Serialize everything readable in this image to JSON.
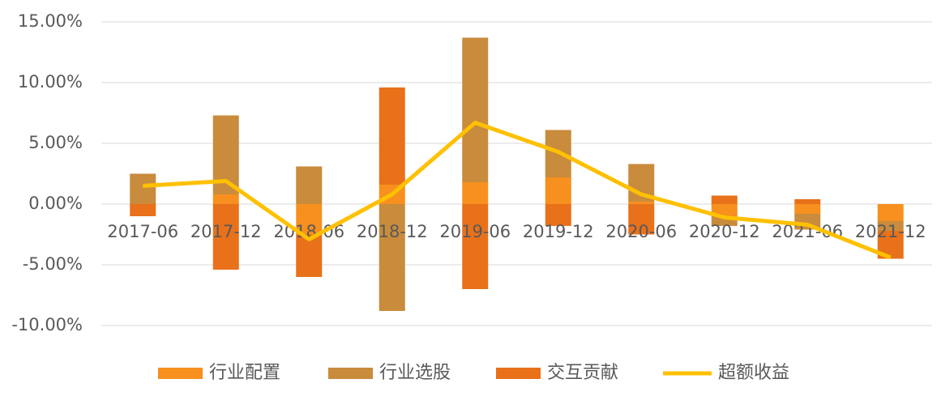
{
  "chart_data": {
    "type": "bar-line",
    "categories": [
      "2017-06",
      "2017-12",
      "2018-06",
      "2018-12",
      "2019-06",
      "2019-12",
      "2020-06",
      "2020-12",
      "2021-06",
      "2021-12"
    ],
    "series": [
      {
        "name": "行业配置",
        "color": "#f7901e",
        "values": [
          0,
          0.8,
          -2.5,
          1.6,
          1.8,
          2.2,
          0.2,
          -1.0,
          -0.8,
          -1.4
        ]
      },
      {
        "name": "行业选股",
        "color": "#c98b3c",
        "values": [
          2.5,
          6.5,
          3.1,
          -8.8,
          11.9,
          3.9,
          3.1,
          -0.8,
          -1.3,
          -0.8
        ]
      },
      {
        "name": "交互贡献",
        "color": "#e8711a",
        "values": [
          -1.0,
          -5.4,
          -3.5,
          8.0,
          -7.0,
          -1.8,
          -2.5,
          0.7,
          0.4,
          -2.3
        ]
      },
      {
        "name": "超额收益",
        "color": "#ffc000",
        "type": "line",
        "values": [
          1.5,
          1.9,
          -2.9,
          0.8,
          6.7,
          4.3,
          0.8,
          -1.1,
          -1.7,
          -4.4
        ]
      }
    ],
    "ylim": [
      -12,
      16
    ],
    "yticks": [
      {
        "value": -10,
        "label": "-10.00%"
      },
      {
        "value": -5,
        "label": "-5.00%"
      },
      {
        "value": 0,
        "label": "0.00%"
      },
      {
        "value": 5,
        "label": "5.00%"
      },
      {
        "value": 10,
        "label": "10.00%"
      },
      {
        "value": 15,
        "label": "15.00%"
      }
    ],
    "grid": true,
    "legend": "bottom"
  }
}
